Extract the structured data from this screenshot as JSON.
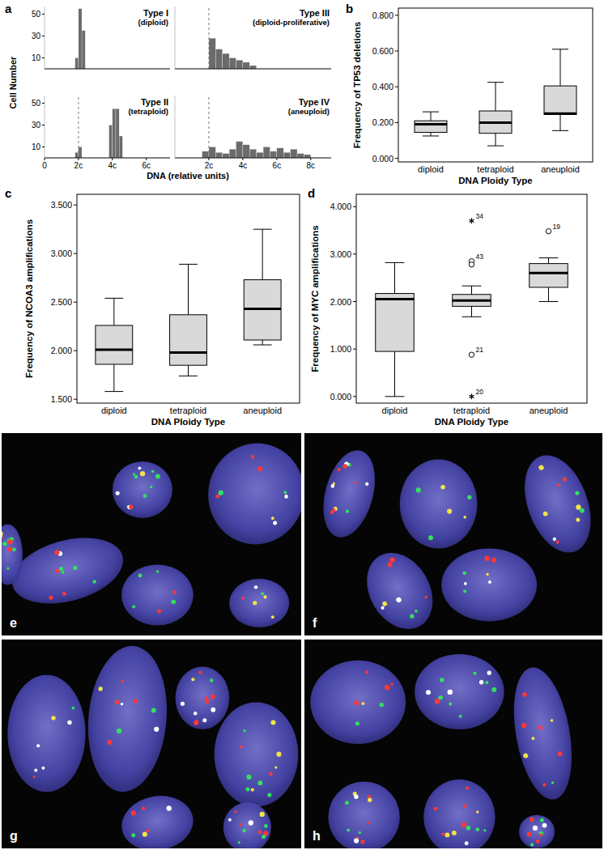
{
  "chart_data": [
    {
      "type": "histogram",
      "annotations": [
        "a"
      ],
      "x_label": "DNA (relative units)",
      "y_label": "Cell Number",
      "color": "#6b6b6b",
      "panels": [
        {
          "title": "Type I",
          "subtitle": "(diploid)",
          "bins": [
            1.8,
            2.0,
            2.2,
            2.4
          ],
          "counts": [
            10,
            55,
            35
          ],
          "xlim": [
            0,
            7.4
          ],
          "ylim": [
            0,
            57
          ],
          "yticks": [
            10,
            30,
            50
          ]
        },
        {
          "title": "Type II",
          "subtitle": "(tetraploid)",
          "bins": [
            1.8,
            2.0,
            2.2,
            2.4,
            2.6,
            2.8,
            3.0,
            3.2,
            3.4,
            3.6,
            3.8,
            4.0,
            4.2,
            4.4,
            4.6
          ],
          "counts": [
            5,
            10,
            0,
            0,
            0,
            0,
            0,
            0,
            0,
            0,
            30,
            45,
            45,
            20
          ],
          "xlim": [
            0,
            7.4
          ],
          "ylim": [
            0,
            57
          ],
          "yticks": [
            10,
            30,
            50
          ],
          "xticks": [
            0,
            {
              "value": 2,
              "label": "2c"
            },
            {
              "value": 4,
              "label": "4c"
            },
            {
              "value": 6,
              "label": "6c"
            }
          ],
          "reference_line": 2
        },
        {
          "title": "Type III",
          "subtitle": "(diploid-proliferative)",
          "bins": [
            2.0,
            2.4,
            2.8,
            3.2,
            3.6,
            4.0,
            4.4,
            4.8
          ],
          "counts": [
            28,
            18,
            14,
            10,
            8,
            6,
            3
          ],
          "xlim": [
            0,
            9.2
          ],
          "ylim": [
            0,
            57
          ],
          "reference_line": 2
        },
        {
          "title": "Type IV",
          "subtitle": "(aneuploid)",
          "bins": [
            1.6,
            2.0,
            2.4,
            2.8,
            3.2,
            3.6,
            4.0,
            4.4,
            4.8,
            5.2,
            5.6,
            6.0,
            6.4,
            6.8,
            7.2,
            7.6,
            8.0
          ],
          "counts": [
            6,
            10,
            5,
            4,
            8,
            15,
            12,
            8,
            5,
            10,
            6,
            9,
            5,
            8,
            4,
            3
          ],
          "xlim": [
            0,
            9.2
          ],
          "ylim": [
            0,
            57
          ],
          "xticks": [
            {
              "value": 2,
              "label": "2c"
            },
            {
              "value": 4,
              "label": "4c"
            },
            {
              "value": 6,
              "label": "6c"
            },
            {
              "value": 8,
              "label": "8c"
            }
          ],
          "reference_line": 2
        }
      ]
    },
    {
      "type": "box",
      "annotations": [
        "b"
      ],
      "x_label": "DNA Ploidy Type",
      "y_label": "Frequency of TP53 deletions",
      "color": "#d9d9d9",
      "categories": [
        "diploid",
        "tetraploid",
        "aneuploid"
      ],
      "min": [
        0.125,
        0.07,
        0.155
      ],
      "q1": [
        0.145,
        0.14,
        0.245
      ],
      "median": [
        0.19,
        0.2,
        0.25
      ],
      "q3": [
        0.21,
        0.265,
        0.405
      ],
      "max": [
        0.26,
        0.425,
        0.61
      ],
      "ylim": [
        -0.02,
        0.84
      ],
      "yticks": [
        {
          "value": 0,
          "label": "0.000"
        },
        {
          "value": 0.2,
          "label": "0.200"
        },
        {
          "value": 0.4,
          "label": "0.400"
        },
        {
          "value": 0.6,
          "label": "0.600"
        },
        {
          "value": 0.8,
          "label": "0.800"
        }
      ]
    },
    {
      "type": "box",
      "annotations": [
        "c"
      ],
      "x_label": "DNA Ploidy Type",
      "y_label": "Frequency of NCOA3 amplifications",
      "color": "#d9d9d9",
      "categories": [
        "diploid",
        "tetraploid",
        "aneuploid"
      ],
      "min": [
        1.58,
        1.74,
        2.06
      ],
      "q1": [
        1.86,
        1.85,
        2.11
      ],
      "median": [
        2.01,
        1.98,
        2.43
      ],
      "q3": [
        2.26,
        2.37,
        2.73
      ],
      "max": [
        2.54,
        2.89,
        3.25
      ],
      "ylim": [
        1.46,
        3.61
      ],
      "yticks": [
        {
          "value": 1.5,
          "label": "1.500"
        },
        {
          "value": 2,
          "label": "2.000"
        },
        {
          "value": 2.5,
          "label": "2.500"
        },
        {
          "value": 3,
          "label": "3.000"
        },
        {
          "value": 3.5,
          "label": "3.500"
        }
      ]
    },
    {
      "type": "box",
      "annotations": [
        "d"
      ],
      "x_label": "DNA Ploidy Type",
      "y_label": "Frequency of MYC amplifications",
      "color": "#d9d9d9",
      "categories": [
        "diploid",
        "tetraploid",
        "aneuploid"
      ],
      "min": [
        0.0,
        1.68,
        2.0
      ],
      "q1": [
        0.95,
        1.9,
        2.3
      ],
      "median": [
        2.05,
        2.02,
        2.6
      ],
      "q3": [
        2.17,
        2.15,
        2.8
      ],
      "max": [
        2.82,
        2.33,
        2.92
      ],
      "outliers": [
        {
          "category": "tetraploid",
          "value": 3.7,
          "label": "34",
          "marker": "star"
        },
        {
          "category": "tetraploid",
          "value": 2.85,
          "label": "43",
          "marker": "circle"
        },
        {
          "category": "tetraploid",
          "value": 2.78,
          "marker": "circle"
        },
        {
          "category": "tetraploid",
          "value": 0.88,
          "label": "21",
          "marker": "circle"
        },
        {
          "category": "tetraploid",
          "value": 0.0,
          "label": "20",
          "marker": "star"
        },
        {
          "category": "aneuploid",
          "value": 3.48,
          "label": "19",
          "marker": "circle"
        }
      ],
      "ylim": [
        -0.14,
        4.26
      ],
      "yticks": [
        {
          "value": 0,
          "label": "0.000"
        },
        {
          "value": 1,
          "label": "1.000"
        },
        {
          "value": 2,
          "label": "2.000"
        },
        {
          "value": 3,
          "label": "3.000"
        },
        {
          "value": 4,
          "label": "4.000"
        }
      ]
    }
  ],
  "images": [
    {
      "label": "e"
    },
    {
      "label": "f"
    },
    {
      "label": "g"
    },
    {
      "label": "h"
    }
  ]
}
